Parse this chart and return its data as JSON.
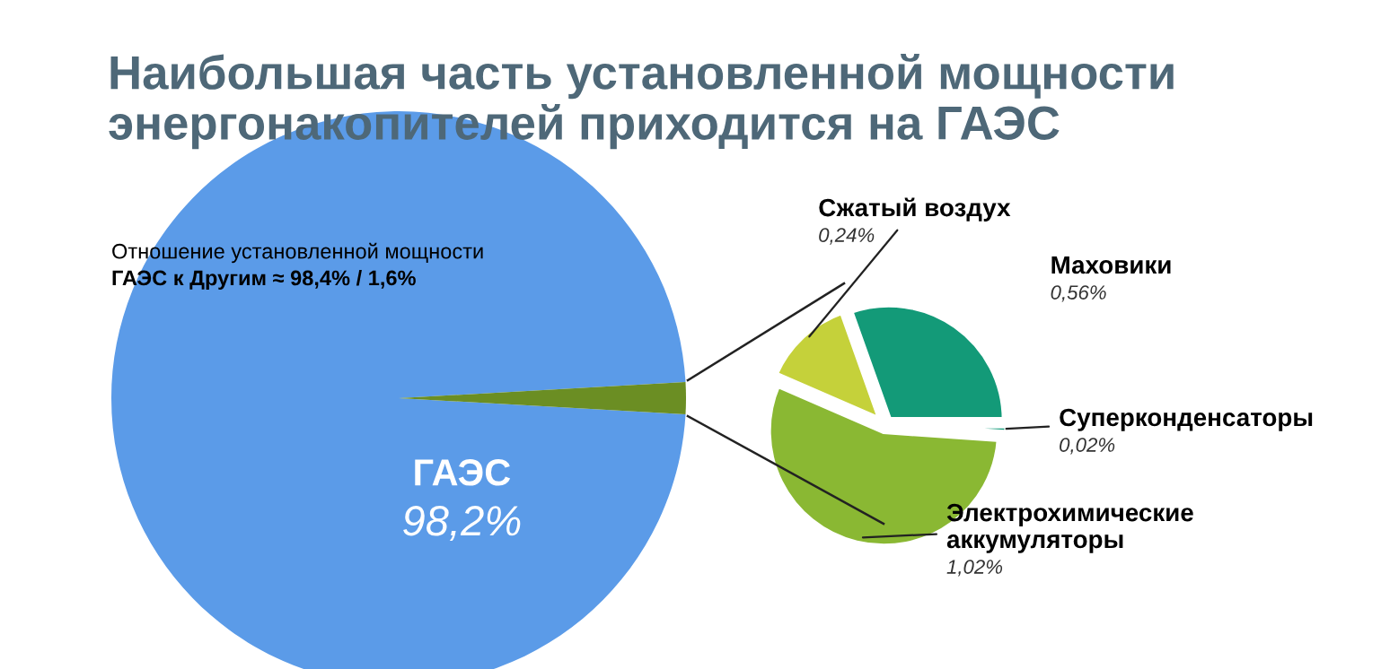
{
  "chart_data": [
    {
      "type": "pie",
      "title": "Наибольшая часть установленной мощности энергонакопителей приходится на ГАЭС",
      "annotations": [
        "Отношение установленной мощности",
        "ГАЭС к Другим ≈ 98,4% / 1,6%"
      ],
      "categories": [
        "ГАЭС",
        null
      ],
      "values": [
        98.2,
        1.8
      ],
      "colors": [
        "#5b9be8",
        "#6b8e23"
      ],
      "value_labels": [
        "98,2%",
        null
      ]
    },
    {
      "type": "pie",
      "categories": [
        "Суперконденсаторы",
        "Электрохимические аккумуляторы",
        "Сжатый воздух",
        "Маховики"
      ],
      "values": [
        0.02,
        1.02,
        0.24,
        0.56
      ],
      "colors": [
        "#139a78",
        "#8ab833",
        "#c5d13a",
        "#139a78"
      ],
      "value_labels": [
        "0,02%",
        "1,02%",
        "0,24%",
        "0,56%"
      ]
    }
  ]
}
